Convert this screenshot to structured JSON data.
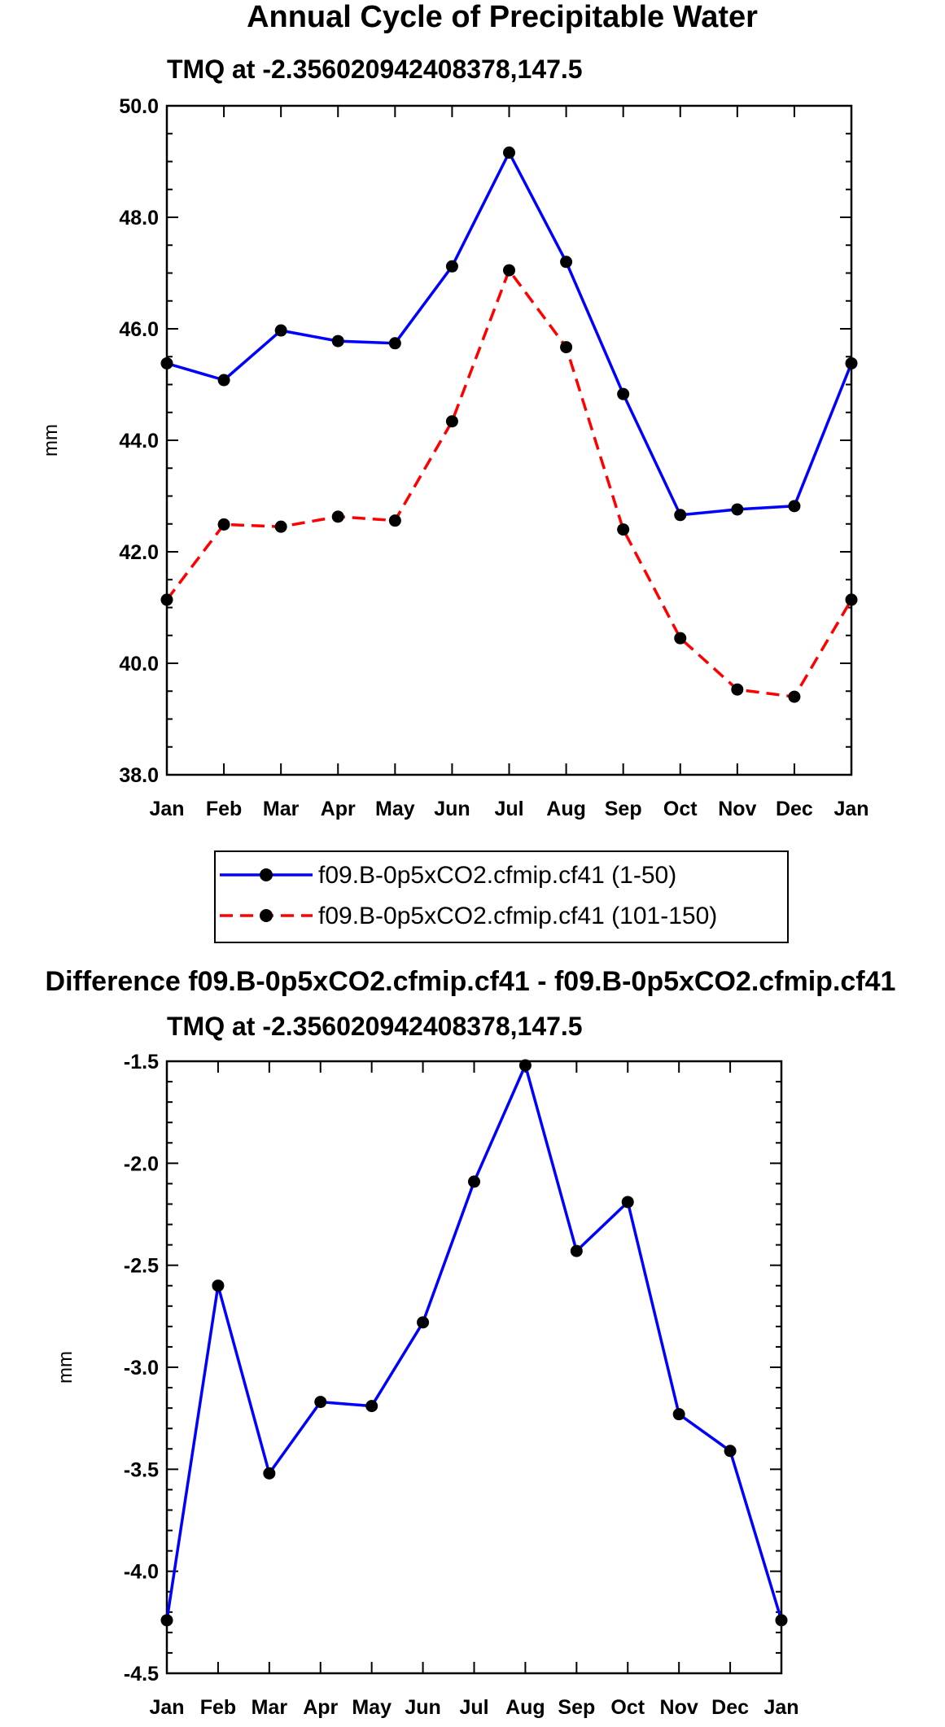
{
  "chart_data": [
    {
      "type": "line",
      "title": "Annual Cycle of Precipitable Water",
      "subtitle": "TMQ at -2.356020942408378,147.5",
      "xlabel": "",
      "ylabel": "mm",
      "categories": [
        "Jan",
        "Feb",
        "Mar",
        "Apr",
        "May",
        "Jun",
        "Jul",
        "Aug",
        "Sep",
        "Oct",
        "Nov",
        "Dec",
        "Jan"
      ],
      "ylim": [
        38.0,
        50.0
      ],
      "yticks": [
        "38.0",
        "40.0",
        "42.0",
        "44.0",
        "46.0",
        "48.0",
        "50.0"
      ],
      "series": [
        {
          "name": "f09.B-0p5xCO2.cfmip.cf41 (1-50)",
          "color": "#0000ff",
          "dash": "solid",
          "values": [
            45.38,
            45.08,
            45.97,
            45.78,
            45.74,
            47.12,
            49.16,
            47.2,
            44.83,
            42.66,
            42.76,
            42.82,
            45.38
          ]
        },
        {
          "name": "f09.B-0p5xCO2.cfmip.cf41 (101-150)",
          "color": "#ff0000",
          "dash": "dashed",
          "values": [
            41.14,
            42.49,
            42.45,
            42.63,
            42.56,
            44.34,
            47.05,
            45.67,
            42.4,
            40.45,
            39.53,
            39.4,
            41.14
          ]
        }
      ]
    },
    {
      "type": "line",
      "title": "Difference f09.B-0p5xCO2.cfmip.cf41 - f09.B-0p5xCO2.cfmip.cf41",
      "subtitle": "TMQ at -2.356020942408378,147.5",
      "xlabel": "",
      "ylabel": "mm",
      "categories": [
        "Jan",
        "Feb",
        "Mar",
        "Apr",
        "May",
        "Jun",
        "Jul",
        "Aug",
        "Sep",
        "Oct",
        "Nov",
        "Dec",
        "Jan"
      ],
      "ylim": [
        -4.5,
        -1.5
      ],
      "yticks": [
        "-4.5",
        "-4.0",
        "-3.5",
        "-3.0",
        "-2.5",
        "-2.0",
        "-1.5"
      ],
      "series": [
        {
          "name": "Difference",
          "color": "#0000ff",
          "dash": "solid",
          "values": [
            -4.24,
            -2.6,
            -3.52,
            -3.17,
            -3.19,
            -2.78,
            -2.09,
            -1.52,
            -2.43,
            -2.19,
            -3.23,
            -3.41,
            -4.24
          ]
        }
      ]
    }
  ]
}
